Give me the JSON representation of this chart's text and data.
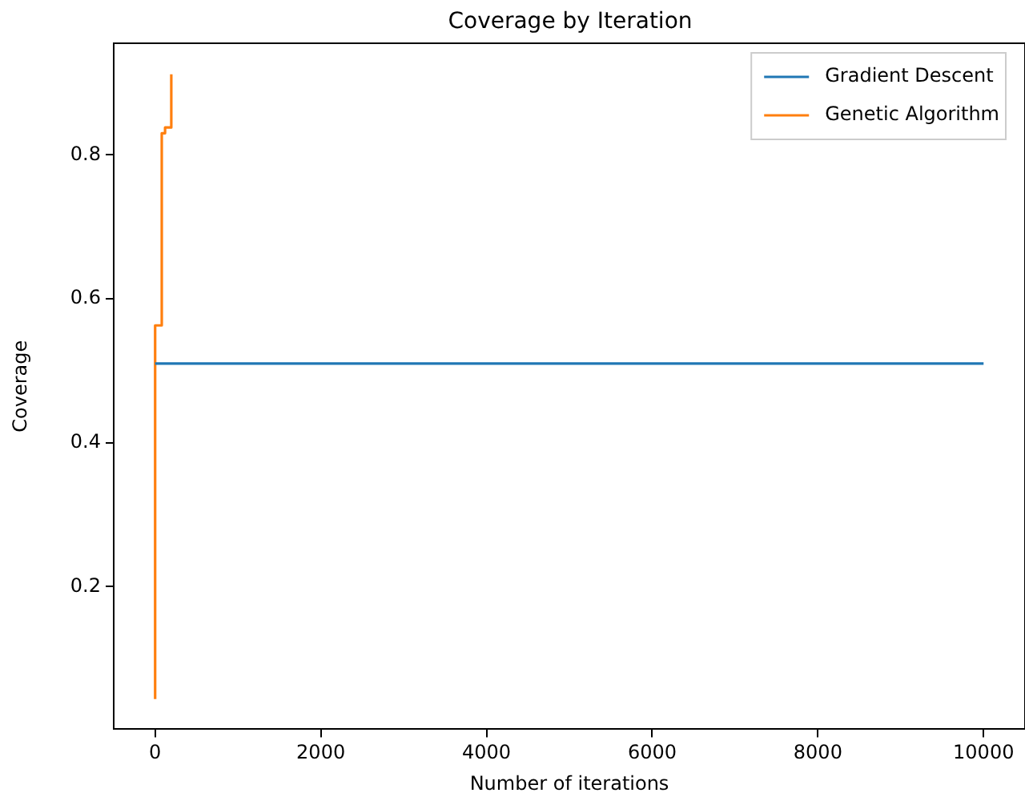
{
  "chart_data": {
    "type": "line",
    "title": "Coverage by Iteration",
    "xlabel": "Number of iterations",
    "ylabel": "Coverage",
    "series": [
      {
        "name": "Gradient Descent",
        "color": "#1f77b4",
        "type": "line",
        "x": [
          0,
          10000
        ],
        "values": [
          0.51,
          0.51
        ]
      },
      {
        "name": "Genetic Algorithm",
        "color": "#ff7f0e",
        "type": "step",
        "x": [
          0,
          0,
          80,
          120,
          195
        ],
        "values": [
          0.044,
          0.563,
          0.83,
          0.838,
          0.912
        ]
      }
    ],
    "xlim": [
      -500,
      10500
    ],
    "xticks": [
      0,
      2000,
      4000,
      6000,
      8000,
      10000
    ],
    "ylim": [
      0.002,
      0.955
    ],
    "yticks": [
      0.2,
      0.4,
      0.6,
      0.8
    ],
    "legend": "top right",
    "marker": "none",
    "line_style": "solid"
  }
}
